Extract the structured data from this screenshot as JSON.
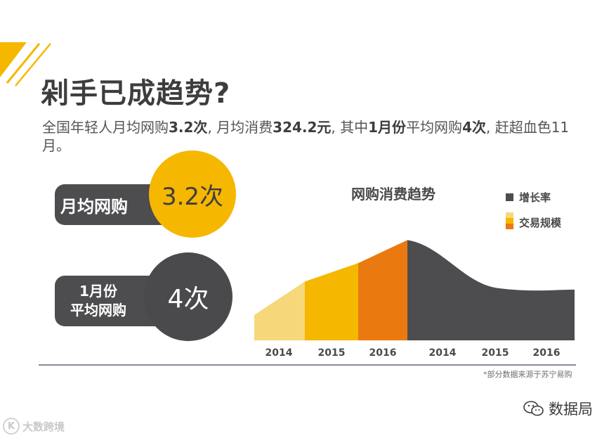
{
  "header": {
    "title": "剁手已成趋势?",
    "subtitle_parts": [
      "全国年轻人月均网购",
      "3.2次",
      ", 月均消费",
      "324.2元",
      ", 其中",
      "1月份",
      "平均网购",
      "4次",
      ", 赶超血色11月。"
    ]
  },
  "stats": {
    "monthly_label": "月均网购",
    "monthly_value": "3.2次",
    "jan_label_line1": "1月份",
    "jan_label_line2": "平均网购",
    "jan_value": "4次"
  },
  "chart_data": {
    "type": "area",
    "title": "网购消费趋势",
    "legend": [
      {
        "name": "增长率",
        "color": "#4d4c4e"
      },
      {
        "name": "交易规模",
        "colors": [
          "#f6d77a",
          "#f5b700",
          "#ea7a10"
        ]
      }
    ],
    "legend_position": "top-right",
    "ylim": [
      0,
      100
    ],
    "series": [
      {
        "name": "交易规模",
        "categories": [
          "2014",
          "2015",
          "2016"
        ],
        "start": [
          22,
          51,
          67
        ],
        "end": [
          51,
          67,
          87
        ],
        "colors": [
          "#f6d77a",
          "#f5b700",
          "#ea7a10"
        ]
      },
      {
        "name": "增长率",
        "categories": [
          "2014",
          "2015",
          "2016"
        ],
        "start": 87,
        "end": 44,
        "color": "#4d4c4e"
      }
    ],
    "x_tick_labels": [
      "2014",
      "2015",
      "2016",
      "2014",
      "2015",
      "2016"
    ]
  },
  "footer": {
    "source_note": "*部分数据来源于苏宁易购",
    "watermark_left": "大数跨境",
    "watermark_left_logo": "K",
    "watermark_right": "数据局"
  },
  "colors": {
    "accent_yellow": "#f5b700",
    "dark_gray": "#4d4c4e",
    "orange": "#ea7a10",
    "light_yellow": "#f6d77a"
  }
}
